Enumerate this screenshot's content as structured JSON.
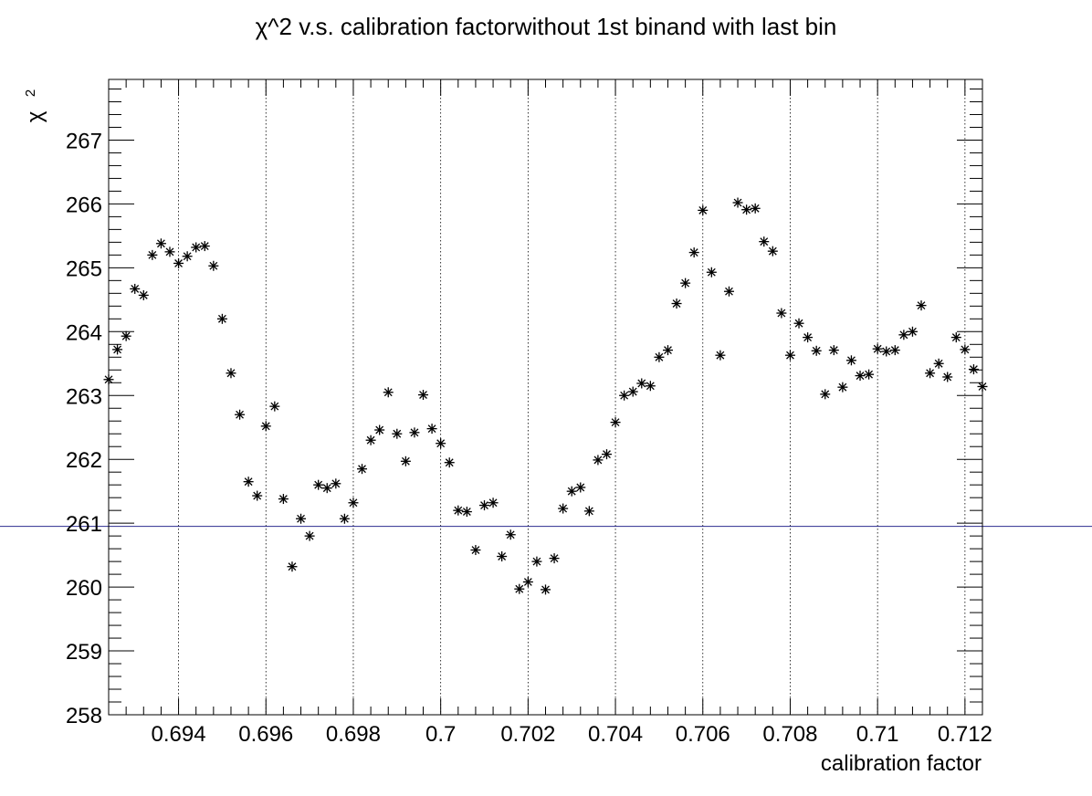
{
  "chart_data": {
    "type": "scatter",
    "title": "χ^2 v.s. calibration factorwithout 1st binand with last bin",
    "xlabel": "calibration factor",
    "ylabel": "χ 2",
    "ylabel_base": "χ",
    "ylabel_sup": "2",
    "xlim": [
      0.6924,
      0.7124
    ],
    "ylim": [
      258,
      267.95
    ],
    "xticks": [
      0.694,
      0.696,
      0.698,
      0.7,
      0.702,
      0.704,
      0.706,
      0.708,
      0.71,
      0.712
    ],
    "xtick_labels": [
      "0.694",
      "0.696",
      "0.698",
      "0.7",
      "0.702",
      "0.704",
      "0.706",
      "0.708",
      "0.71",
      "0.712"
    ],
    "yticks": [
      258,
      259,
      260,
      261,
      262,
      263,
      264,
      265,
      266,
      267
    ],
    "ytick_labels": [
      "258",
      "259",
      "260",
      "261",
      "262",
      "263",
      "264",
      "265",
      "266",
      "267"
    ],
    "vertical_gridlines": "dotted at major x ticks",
    "horizontal_reference_line": {
      "y": 260.95,
      "color": "#2b2b8f"
    },
    "marker": "*",
    "marker_color": "#000000",
    "points": [
      {
        "x": 0.6924,
        "y": 263.25
      },
      {
        "x": 0.6926,
        "y": 263.72
      },
      {
        "x": 0.6928,
        "y": 263.93
      },
      {
        "x": 0.693,
        "y": 264.67
      },
      {
        "x": 0.6932,
        "y": 264.57
      },
      {
        "x": 0.6934,
        "y": 265.2
      },
      {
        "x": 0.6936,
        "y": 265.38
      },
      {
        "x": 0.6938,
        "y": 265.25
      },
      {
        "x": 0.694,
        "y": 265.07
      },
      {
        "x": 0.6942,
        "y": 265.18
      },
      {
        "x": 0.6944,
        "y": 265.32
      },
      {
        "x": 0.6946,
        "y": 265.34
      },
      {
        "x": 0.6948,
        "y": 265.03
      },
      {
        "x": 0.695,
        "y": 264.2
      },
      {
        "x": 0.6952,
        "y": 263.35
      },
      {
        "x": 0.6954,
        "y": 262.7
      },
      {
        "x": 0.6956,
        "y": 261.65
      },
      {
        "x": 0.6958,
        "y": 261.43
      },
      {
        "x": 0.696,
        "y": 262.52
      },
      {
        "x": 0.6962,
        "y": 262.83
      },
      {
        "x": 0.6964,
        "y": 261.38
      },
      {
        "x": 0.6966,
        "y": 260.32
      },
      {
        "x": 0.6968,
        "y": 261.07
      },
      {
        "x": 0.697,
        "y": 260.8
      },
      {
        "x": 0.6972,
        "y": 261.6
      },
      {
        "x": 0.6974,
        "y": 261.55
      },
      {
        "x": 0.6976,
        "y": 261.62
      },
      {
        "x": 0.6978,
        "y": 261.07
      },
      {
        "x": 0.698,
        "y": 261.32
      },
      {
        "x": 0.6982,
        "y": 261.85
      },
      {
        "x": 0.6984,
        "y": 262.3
      },
      {
        "x": 0.6986,
        "y": 262.46
      },
      {
        "x": 0.6988,
        "y": 263.05
      },
      {
        "x": 0.699,
        "y": 262.4
      },
      {
        "x": 0.6992,
        "y": 261.97
      },
      {
        "x": 0.6994,
        "y": 262.42
      },
      {
        "x": 0.6996,
        "y": 263.01
      },
      {
        "x": 0.6998,
        "y": 262.48
      },
      {
        "x": 0.7,
        "y": 262.25
      },
      {
        "x": 0.7002,
        "y": 261.95
      },
      {
        "x": 0.7004,
        "y": 261.2
      },
      {
        "x": 0.7006,
        "y": 261.18
      },
      {
        "x": 0.7008,
        "y": 260.58
      },
      {
        "x": 0.701,
        "y": 261.28
      },
      {
        "x": 0.7012,
        "y": 261.32
      },
      {
        "x": 0.7014,
        "y": 260.48
      },
      {
        "x": 0.7016,
        "y": 260.82
      },
      {
        "x": 0.7018,
        "y": 259.97
      },
      {
        "x": 0.702,
        "y": 260.08
      },
      {
        "x": 0.7022,
        "y": 260.4
      },
      {
        "x": 0.7024,
        "y": 259.96
      },
      {
        "x": 0.7026,
        "y": 260.45
      },
      {
        "x": 0.7028,
        "y": 261.23
      },
      {
        "x": 0.703,
        "y": 261.5
      },
      {
        "x": 0.7032,
        "y": 261.56
      },
      {
        "x": 0.7034,
        "y": 261.19
      },
      {
        "x": 0.7036,
        "y": 261.99
      },
      {
        "x": 0.7038,
        "y": 262.08
      },
      {
        "x": 0.704,
        "y": 262.58
      },
      {
        "x": 0.7042,
        "y": 263.0
      },
      {
        "x": 0.7044,
        "y": 263.06
      },
      {
        "x": 0.7046,
        "y": 263.19
      },
      {
        "x": 0.7048,
        "y": 263.15
      },
      {
        "x": 0.705,
        "y": 263.6
      },
      {
        "x": 0.7052,
        "y": 263.71
      },
      {
        "x": 0.7054,
        "y": 264.44
      },
      {
        "x": 0.7056,
        "y": 264.76
      },
      {
        "x": 0.7058,
        "y": 265.24
      },
      {
        "x": 0.706,
        "y": 265.9
      },
      {
        "x": 0.7062,
        "y": 264.93
      },
      {
        "x": 0.7064,
        "y": 263.63
      },
      {
        "x": 0.7066,
        "y": 264.63
      },
      {
        "x": 0.7068,
        "y": 266.02
      },
      {
        "x": 0.707,
        "y": 265.91
      },
      {
        "x": 0.7072,
        "y": 265.93
      },
      {
        "x": 0.7074,
        "y": 265.41
      },
      {
        "x": 0.7076,
        "y": 265.26
      },
      {
        "x": 0.7078,
        "y": 264.29
      },
      {
        "x": 0.708,
        "y": 263.63
      },
      {
        "x": 0.7082,
        "y": 264.13
      },
      {
        "x": 0.7084,
        "y": 263.91
      },
      {
        "x": 0.7086,
        "y": 263.7
      },
      {
        "x": 0.7088,
        "y": 263.02
      },
      {
        "x": 0.709,
        "y": 263.71
      },
      {
        "x": 0.7092,
        "y": 263.13
      },
      {
        "x": 0.7094,
        "y": 263.55
      },
      {
        "x": 0.7096,
        "y": 263.31
      },
      {
        "x": 0.7098,
        "y": 263.33
      },
      {
        "x": 0.71,
        "y": 263.73
      },
      {
        "x": 0.7102,
        "y": 263.69
      },
      {
        "x": 0.7104,
        "y": 263.71
      },
      {
        "x": 0.7106,
        "y": 263.95
      },
      {
        "x": 0.7108,
        "y": 264.0
      },
      {
        "x": 0.711,
        "y": 264.41
      },
      {
        "x": 0.7112,
        "y": 263.35
      },
      {
        "x": 0.7114,
        "y": 263.5
      },
      {
        "x": 0.7116,
        "y": 263.29
      },
      {
        "x": 0.7118,
        "y": 263.91
      },
      {
        "x": 0.712,
        "y": 263.72
      },
      {
        "x": 0.7122,
        "y": 263.41
      },
      {
        "x": 0.7124,
        "y": 263.14
      }
    ]
  }
}
